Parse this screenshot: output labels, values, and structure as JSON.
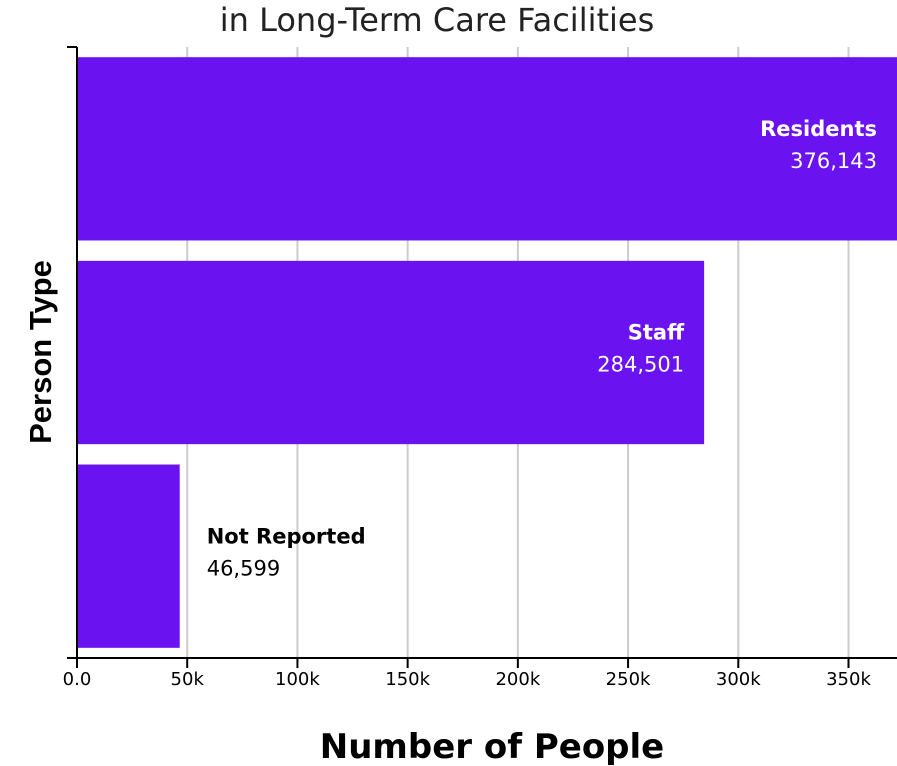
{
  "chart_data": {
    "type": "bar",
    "orientation": "horizontal",
    "title": "in Long-Term Care Facilities",
    "xlabel": "Number of People",
    "ylabel": "Person Type",
    "categories": [
      "Residents",
      "Staff",
      "Not Reported"
    ],
    "values": [
      376143,
      284501,
      46599
    ],
    "value_labels": [
      "376,143",
      "284,501",
      "46,599"
    ],
    "xlim": [
      0,
      372000
    ],
    "xticks": [
      0,
      50000,
      100000,
      150000,
      200000,
      250000,
      300000,
      350000
    ],
    "xtick_labels": [
      "0.0",
      "50k",
      "100k",
      "150k",
      "200k",
      "250k",
      "300k",
      "350k"
    ],
    "grid": true,
    "legend": "none",
    "colors": {
      "bar": "#6a12f0",
      "label_inside": "#ffffff",
      "label_outside": "#000000",
      "grid": "#cccccc"
    }
  }
}
